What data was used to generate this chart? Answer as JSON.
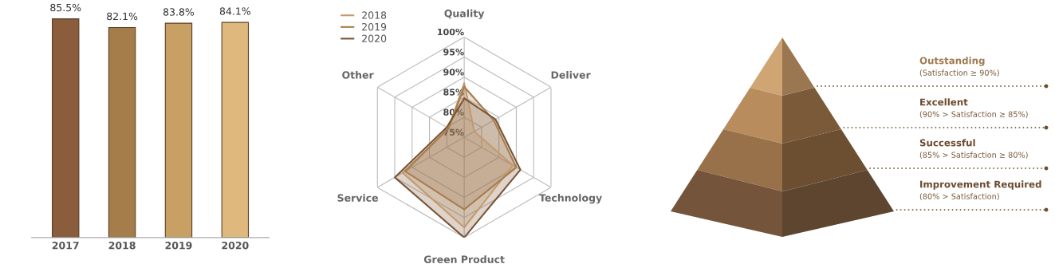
{
  "chart_data": [
    {
      "type": "bar",
      "categories": [
        "2017",
        "2018",
        "2019",
        "2020"
      ],
      "values": [
        85.5,
        82.1,
        83.8,
        84.1
      ],
      "colors": [
        "#8a5e3c",
        "#a57d4a",
        "#c9a064",
        "#deb87c"
      ],
      "value_labels": [
        "85.5%",
        "82.1%",
        "83.8%",
        "84.1%"
      ],
      "tick_labels": "x"
    },
    {
      "type": "radar",
      "categories": [
        "Quality",
        "Deliver",
        "Technology",
        "Green Product",
        "Service",
        "Other"
      ],
      "series": [
        {
          "name": "2018",
          "color": "#c49a6c",
          "values": [
            88.5,
            77.9,
            89.0,
            97.5,
            92.7,
            79.5
          ]
        },
        {
          "name": "2019",
          "color": "#a87d4e",
          "values": [
            87.6,
            83.5,
            90.0,
            93.0,
            92.0,
            79.5
          ]
        },
        {
          "name": "2020",
          "color": "#7a5535",
          "values": [
            84.7,
            84.0,
            91.2,
            100,
            95.0,
            80.0
          ]
        }
      ],
      "ylim": [
        75,
        100
      ],
      "yticks": [
        {
          "value": 75,
          "label": "75%"
        },
        {
          "value": 80,
          "label": "80%"
        },
        {
          "value": 85,
          "label": "85%"
        },
        {
          "value": 90,
          "label": "90%"
        },
        {
          "value": 95,
          "label": "95%"
        },
        {
          "value": 100,
          "label": "100%"
        }
      ],
      "legend": "top left"
    },
    {
      "type": "other",
      "annotations": [
        "Outstanding",
        "(Satisfaction ≥ 90%)",
        "Excellent",
        "(90% > Satisfaction ≥ 85%)",
        "Successful",
        "(85% > Satisfaction ≥ 80%)",
        "Improvement Required",
        "(80% > Satisfaction)"
      ]
    }
  ]
}
